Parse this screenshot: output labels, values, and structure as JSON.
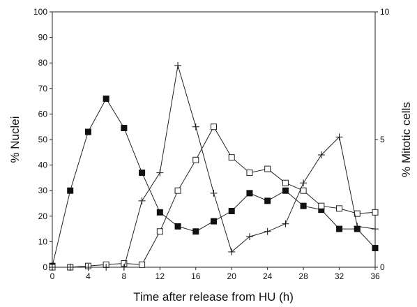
{
  "chart_data": {
    "type": "line",
    "xlabel": "Time after release from HU (h)",
    "ylabel": "% Nuclei",
    "y2label": "% Mitotic cells",
    "xlim": [
      0,
      36
    ],
    "ylim": [
      0,
      100
    ],
    "y2lim": [
      0,
      10
    ],
    "x_ticks": [
      "0",
      "4",
      "8",
      "12",
      "16",
      "20",
      "24",
      "28",
      "32",
      "36"
    ],
    "x_tick_values": [
      0,
      4,
      8,
      12,
      16,
      20,
      24,
      28,
      32,
      36
    ],
    "y_ticks": [
      "0",
      "10",
      "20",
      "30",
      "40",
      "50",
      "60",
      "70",
      "80",
      "90",
      "100"
    ],
    "y_tick_values": [
      0,
      10,
      20,
      30,
      40,
      50,
      60,
      70,
      80,
      90,
      100
    ],
    "y2_ticks": [
      "0",
      "5",
      "10"
    ],
    "y2_tick_values": [
      0,
      5,
      10
    ],
    "grid": false,
    "series": [
      {
        "marker": "filled-square",
        "axis": "left",
        "x": [
          0,
          2,
          4,
          6,
          8,
          10,
          12,
          14,
          16,
          18,
          20,
          22,
          24,
          26,
          28,
          30,
          32,
          34,
          36
        ],
        "y": [
          0.5,
          30,
          53,
          66,
          54.5,
          37,
          21.5,
          16,
          14,
          18,
          22,
          29,
          26,
          30,
          24,
          22.5,
          15,
          15,
          7.5
        ]
      },
      {
        "marker": "open-square",
        "axis": "left",
        "x": [
          0,
          2,
          4,
          6,
          8,
          10,
          12,
          14,
          16,
          18,
          20,
          22,
          24,
          26,
          28,
          30,
          32,
          34,
          36
        ],
        "y": [
          0,
          0,
          0.5,
          1,
          1.5,
          1,
          14,
          30,
          42,
          55,
          43,
          37,
          38.5,
          33,
          30,
          24,
          23,
          21,
          21.5
        ]
      },
      {
        "marker": "plus",
        "axis": "right",
        "x": [
          0,
          2,
          4,
          6,
          8,
          10,
          12,
          14,
          16,
          18,
          20,
          22,
          24,
          26,
          28,
          30,
          32,
          34,
          36
        ],
        "y": [
          0,
          0,
          0,
          0,
          0,
          2.6,
          3.7,
          7.9,
          5.5,
          2.9,
          0.6,
          1.2,
          1.4,
          1.7,
          3.3,
          4.4,
          5.1,
          1.6,
          1.5
        ]
      }
    ]
  }
}
